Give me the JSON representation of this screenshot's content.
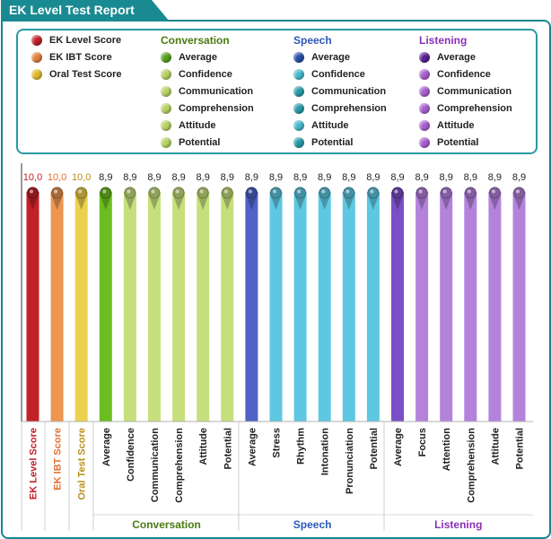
{
  "report": {
    "title": "EK Level Test Report"
  },
  "legend": {
    "main": [
      {
        "label": "EK Level Score",
        "color": "#c0202a"
      },
      {
        "label": "EK IBT Score",
        "color": "#e0803a"
      },
      {
        "label": "Oral Test Score",
        "color": "#e0b830"
      }
    ],
    "groups": [
      {
        "title": "Conversation",
        "title_color": "#4a7a10",
        "items": [
          {
            "label": "Average",
            "color": "#5aa020"
          },
          {
            "label": "Confidence",
            "color": "#b6d264"
          },
          {
            "label": "Communication",
            "color": "#b6d264"
          },
          {
            "label": "Comprehension",
            "color": "#b6d264"
          },
          {
            "label": "Attitude",
            "color": "#b6d264"
          },
          {
            "label": "Potential",
            "color": "#b6d264"
          }
        ]
      },
      {
        "title": "Speech",
        "title_color": "#2a58b8",
        "items": [
          {
            "label": "Average",
            "color": "#2a4fa8"
          },
          {
            "label": "Confidence",
            "color": "#48b8cc"
          },
          {
            "label": "Communication",
            "color": "#2a9aa8"
          },
          {
            "label": "Comprehension",
            "color": "#2a9aa8"
          },
          {
            "label": "Attitude",
            "color": "#48b8cc"
          },
          {
            "label": "Potential",
            "color": "#2a9aa8"
          }
        ]
      },
      {
        "title": "Listening",
        "title_color": "#8a30b8",
        "items": [
          {
            "label": "Average",
            "color": "#5a2090"
          },
          {
            "label": "Confidence",
            "color": "#a860d0"
          },
          {
            "label": "Communication",
            "color": "#a860d0"
          },
          {
            "label": "Comprehension",
            "color": "#a860d0"
          },
          {
            "label": "Attitude",
            "color": "#a860d0"
          },
          {
            "label": "Potential",
            "color": "#a860d0"
          }
        ]
      }
    ]
  },
  "chart_data": {
    "type": "bar",
    "ylim": [
      0,
      10.5
    ],
    "grid": false,
    "bars": [
      {
        "category": "EK Level Score",
        "value": 10.0,
        "label": "10,0",
        "color": "#c32128",
        "label_color": "#c0202a"
      },
      {
        "category": "EK IBT Score",
        "value": 10.0,
        "label": "10,0",
        "color": "#ee9550",
        "label_color": "#e07030"
      },
      {
        "category": "Oral Test Score",
        "value": 10.0,
        "label": "10,0",
        "color": "#edd04e",
        "label_color": "#b89020"
      },
      {
        "category": "Average",
        "value": 8.9,
        "label": "8,9",
        "color": "#6cbd20",
        "label_color": "#222222"
      },
      {
        "category": "Confidence",
        "value": 8.9,
        "label": "8,9",
        "color": "#c6df7c",
        "label_color": "#222222"
      },
      {
        "category": "Communication",
        "value": 8.9,
        "label": "8,9",
        "color": "#c6df7c",
        "label_color": "#222222"
      },
      {
        "category": "Comprehension",
        "value": 8.9,
        "label": "8,9",
        "color": "#c6df7c",
        "label_color": "#222222"
      },
      {
        "category": "Attitude",
        "value": 8.9,
        "label": "8,9",
        "color": "#c6df7c",
        "label_color": "#222222"
      },
      {
        "category": "Potential",
        "value": 8.9,
        "label": "8,9",
        "color": "#c6df7c",
        "label_color": "#222222"
      },
      {
        "category": "Average",
        "value": 8.9,
        "label": "8,9",
        "color": "#4f62c8",
        "label_color": "#222222"
      },
      {
        "category": "Stress",
        "value": 8.9,
        "label": "8,9",
        "color": "#5ec8e2",
        "label_color": "#222222"
      },
      {
        "category": "Rhythm",
        "value": 8.9,
        "label": "8,9",
        "color": "#5ec8e2",
        "label_color": "#222222"
      },
      {
        "category": "Intonation",
        "value": 8.9,
        "label": "8,9",
        "color": "#5ec8e2",
        "label_color": "#222222"
      },
      {
        "category": "Pronunciation",
        "value": 8.9,
        "label": "8,9",
        "color": "#5ec8e2",
        "label_color": "#222222"
      },
      {
        "category": "Potential",
        "value": 8.9,
        "label": "8,9",
        "color": "#5ec8e2",
        "label_color": "#222222"
      },
      {
        "category": "Average",
        "value": 8.9,
        "label": "8,9",
        "color": "#7c4ec6",
        "label_color": "#222222"
      },
      {
        "category": "Focus",
        "value": 8.9,
        "label": "8,9",
        "color": "#b383dc",
        "label_color": "#222222"
      },
      {
        "category": "Attention",
        "value": 8.9,
        "label": "8,9",
        "color": "#b383dc",
        "label_color": "#222222"
      },
      {
        "category": "Comprehension",
        "value": 8.9,
        "label": "8,9",
        "color": "#b383dc",
        "label_color": "#222222"
      },
      {
        "category": "Attitude",
        "value": 8.9,
        "label": "8,9",
        "color": "#b383dc",
        "label_color": "#222222"
      },
      {
        "category": "Potential",
        "value": 8.9,
        "label": "8,9",
        "color": "#b383dc",
        "label_color": "#222222"
      }
    ],
    "groups": [
      {
        "name": "Conversation",
        "color": "#4a7a10",
        "from": 3,
        "to": 8
      },
      {
        "name": "Speech",
        "color": "#2a58b8",
        "from": 9,
        "to": 14
      },
      {
        "name": "Listening",
        "color": "#8a30b8",
        "from": 15,
        "to": 20
      }
    ]
  }
}
